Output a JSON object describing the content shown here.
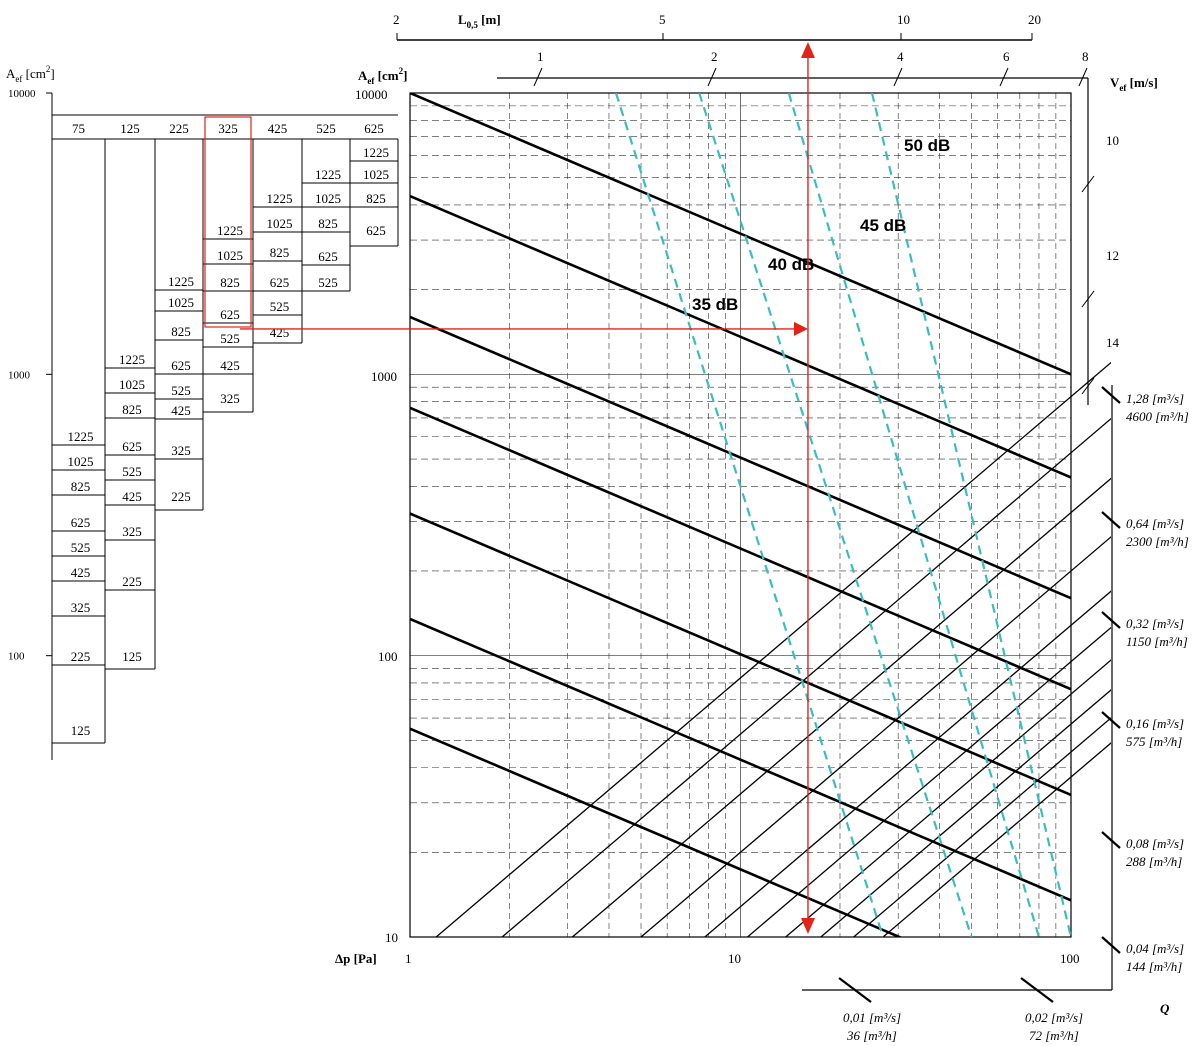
{
  "chart_data": {
    "type": "line",
    "x_axis": {
      "label": "Δp [Pa]",
      "scale": "log",
      "range": [
        1,
        100
      ],
      "ticks": [
        "1",
        "10",
        "100"
      ]
    },
    "y_axis": {
      "label": "Aef [cm²]",
      "scale": "log",
      "range": [
        10,
        10000
      ],
      "ticks": [
        "10",
        "100",
        "1000",
        "10000"
      ]
    },
    "top_axis": {
      "label": "L0,5 [m]",
      "ticks": [
        "2",
        "5",
        "10",
        "20"
      ]
    },
    "velocity_axis": {
      "label": "Vef [m/s]",
      "ticks": [
        "1",
        "2",
        "4",
        "6",
        "8",
        "10",
        "12",
        "14"
      ]
    },
    "flow_axis": {
      "label": "Q",
      "lines": [
        {
          "m3s": "1,28 [m³/s]",
          "m3h": "4600 [m³/h]"
        },
        {
          "m3s": "0,64 [m³/s]",
          "m3h": "2300 [m³/h]"
        },
        {
          "m3s": "0,32 [m³/s]",
          "m3h": "1150 [m³/h]"
        },
        {
          "m3s": "0,16 [m³/s]",
          "m3h": "575 [m³/h]"
        },
        {
          "m3s": "0,08 [m³/s]",
          "m3h": "288 [m³/h]"
        },
        {
          "m3s": "0,04 [m³/s]",
          "m3h": "144 [m³/h]"
        },
        {
          "m3s": "0,02 [m³/s]",
          "m3h": "72 [m³/h]"
        },
        {
          "m3s": "0,01 [m³/s]",
          "m3h": "36 [m³/h]"
        }
      ]
    },
    "noise_labels": [
      "35 dB",
      "40 dB",
      "45 dB",
      "50 dB"
    ],
    "reading_example": {
      "dp_pa": 16,
      "aef_cm2": 1450,
      "highlighted_column": "325",
      "highlighted_value": "625"
    },
    "sizing_table": {
      "axis_label": "Aef [cm²]",
      "axis_ticks": [
        "10000",
        "1000",
        "100"
      ],
      "columns": [
        {
          "header": "75",
          "values": [
            "1225",
            "1025",
            "825",
            "625",
            "525",
            "425",
            "325",
            "225",
            "125"
          ]
        },
        {
          "header": "125",
          "values": [
            "1225",
            "1025",
            "825",
            "625",
            "525",
            "425",
            "325",
            "225",
            "125"
          ]
        },
        {
          "header": "225",
          "values": [
            "1225",
            "1025",
            "825",
            "625",
            "525",
            "425",
            "325",
            "225"
          ]
        },
        {
          "header": "325",
          "values": [
            "1225",
            "1025",
            "825",
            "625",
            "525",
            "425",
            "325"
          ]
        },
        {
          "header": "425",
          "values": [
            "1225",
            "1025",
            "825",
            "625",
            "525",
            "425"
          ]
        },
        {
          "header": "525",
          "values": [
            "1225",
            "1025",
            "825",
            "625",
            "525"
          ]
        },
        {
          "header": "625",
          "values": [
            "1225",
            "1025",
            "825",
            "625"
          ]
        }
      ]
    }
  }
}
